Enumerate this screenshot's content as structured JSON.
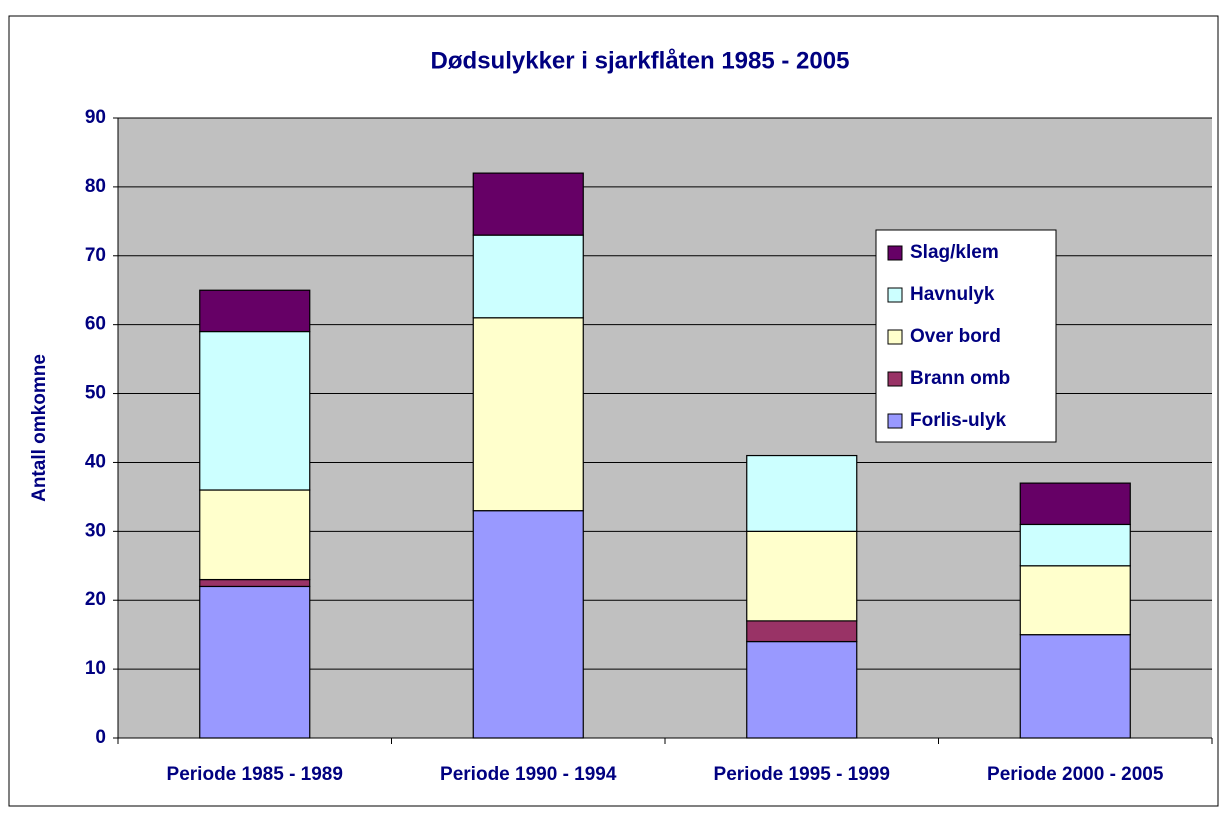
{
  "chart_data": {
    "type": "stacked_bar",
    "title": "Dødsulykker i sjarkflåten 1985 - 2005",
    "y_label": "Antall omkomne",
    "categories": [
      "Periode 1985 - 1989",
      "Periode 1990 - 1994",
      "Periode 1995 - 1999",
      "Periode 2000 - 2005"
    ],
    "series": [
      {
        "name": "Forlis-ulyk",
        "color": "#9999ff",
        "values": [
          22,
          33,
          14,
          15
        ]
      },
      {
        "name": "Brann omb",
        "color": "#993366",
        "values": [
          1,
          0,
          3,
          0
        ]
      },
      {
        "name": "Over bord",
        "color": "#ffffcc",
        "values": [
          13,
          28,
          13,
          10
        ]
      },
      {
        "name": "Havnulyk",
        "color": "#ccffff",
        "values": [
          23,
          12,
          11,
          6
        ]
      },
      {
        "name": "Slag/klem",
        "color": "#660066",
        "values": [
          6,
          9,
          0,
          6
        ]
      }
    ],
    "ylim": [
      0,
      90
    ],
    "yticks": [
      0,
      10,
      20,
      30,
      40,
      50,
      60,
      70,
      80,
      90
    ],
    "grid": true,
    "legend": "right"
  }
}
